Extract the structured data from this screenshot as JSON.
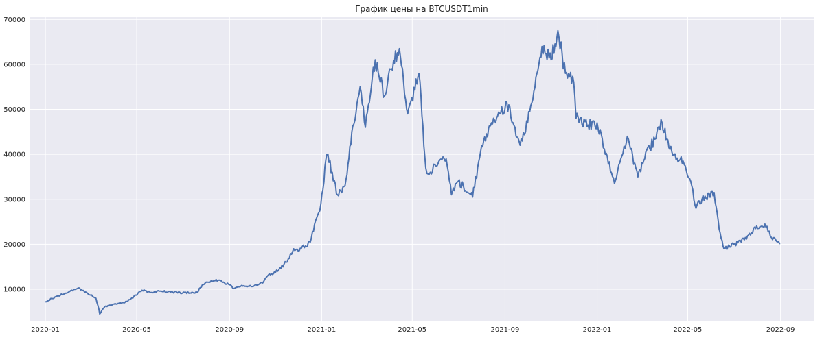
{
  "chart_data": {
    "type": "line",
    "title": "График цены на BTCUSDT1min",
    "xlabel": "",
    "ylabel": "",
    "x_ticks": [
      "2020-01",
      "2020-05",
      "2020-09",
      "2021-01",
      "2021-05",
      "2021-09",
      "2022-01",
      "2022-05",
      "2022-09"
    ],
    "y_ticks": [
      10000,
      20000,
      30000,
      40000,
      50000,
      60000,
      70000
    ],
    "ylim": [
      3000,
      70500
    ],
    "xlim": [
      "2019-12-11",
      "2022-10-15"
    ],
    "grid": true,
    "series": [
      {
        "color": "#4c72b0",
        "x": [
          "2020-01-01",
          "2020-01-15",
          "2020-02-01",
          "2020-02-14",
          "2020-03-01",
          "2020-03-08",
          "2020-03-12",
          "2020-03-13",
          "2020-03-20",
          "2020-04-01",
          "2020-04-15",
          "2020-04-30",
          "2020-05-08",
          "2020-05-20",
          "2020-06-01",
          "2020-06-15",
          "2020-07-01",
          "2020-07-20",
          "2020-07-27",
          "2020-08-01",
          "2020-08-10",
          "2020-08-17",
          "2020-09-01",
          "2020-09-05",
          "2020-09-20",
          "2020-10-01",
          "2020-10-15",
          "2020-10-21",
          "2020-11-01",
          "2020-11-15",
          "2020-11-25",
          "2020-12-01",
          "2020-12-17",
          "2020-12-31",
          "2021-01-08",
          "2021-01-15",
          "2021-01-22",
          "2021-02-01",
          "2021-02-10",
          "2021-02-21",
          "2021-02-28",
          "2021-03-13",
          "2021-03-25",
          "2021-04-01",
          "2021-04-14",
          "2021-04-25",
          "2021-05-10",
          "2021-05-19",
          "2021-05-25",
          "2021-06-01",
          "2021-06-15",
          "2021-06-22",
          "2021-07-01",
          "2021-07-20",
          "2021-08-01",
          "2021-08-14",
          "2021-08-25",
          "2021-09-06",
          "2021-09-21",
          "2021-10-01",
          "2021-10-20",
          "2021-11-01",
          "2021-11-10",
          "2021-11-20",
          "2021-12-01",
          "2021-12-04",
          "2021-12-20",
          "2022-01-01",
          "2022-01-24",
          "2022-02-10",
          "2022-02-24",
          "2022-03-05",
          "2022-03-28",
          "2022-04-10",
          "2022-04-25",
          "2022-05-05",
          "2022-05-12",
          "2022-05-20",
          "2022-06-05",
          "2022-06-13",
          "2022-06-18",
          "2022-07-01",
          "2022-07-15",
          "2022-07-30",
          "2022-08-14",
          "2022-08-20",
          "2022-08-31"
        ],
        "y": [
          7200,
          8400,
          9400,
          10300,
          8700,
          8000,
          5500,
          4500,
          6200,
          6700,
          7000,
          8700,
          9800,
          9300,
          9600,
          9400,
          9200,
          9300,
          11000,
          11600,
          11800,
          12000,
          11000,
          10300,
          10800,
          10600,
          11400,
          12900,
          13800,
          16000,
          19000,
          18500,
          20500,
          29000,
          40000,
          36000,
          31000,
          33000,
          45000,
          55000,
          46000,
          61000,
          53000,
          59000,
          63500,
          49000,
          58000,
          37000,
          36000,
          37500,
          39000,
          31000,
          34000,
          30500,
          42000,
          47000,
          49000,
          51000,
          42000,
          47000,
          64000,
          61000,
          67500,
          58000,
          56000,
          48000,
          46500,
          47000,
          33500,
          44000,
          35000,
          39000,
          47000,
          40500,
          38500,
          34000,
          28000,
          30000,
          31500,
          22500,
          19000,
          20000,
          21000,
          23500,
          24000,
          21500,
          20000
        ]
      }
    ]
  }
}
